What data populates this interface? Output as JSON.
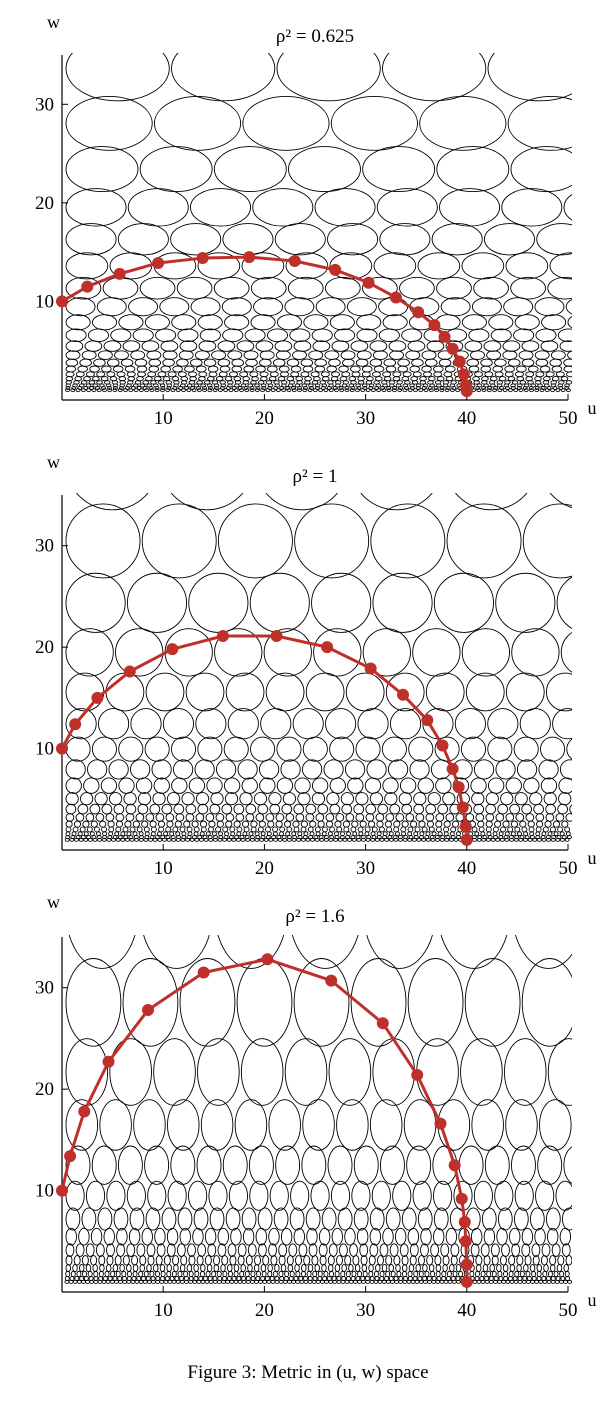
{
  "figure": {
    "caption": "Figure 3: Metric in (u, w) space"
  },
  "chart_data": [
    {
      "type": "scatter",
      "title": "ρ² = 0.625",
      "rho2": 0.625,
      "xlabel": "u",
      "ylabel": "w",
      "xlim": [
        0,
        50
      ],
      "ylim": [
        0,
        35
      ],
      "xticks": [
        10,
        20,
        30,
        40,
        50
      ],
      "yticks": [
        10,
        20,
        30
      ],
      "grid": false,
      "curve_color": "#c0302b",
      "ellipse_color": "#000000",
      "curve": {
        "x": [
          0,
          2.5,
          5.7,
          9.5,
          13.9,
          18.5,
          23.0,
          27.0,
          30.3,
          33.0,
          35.2,
          36.8,
          37.8,
          38.6,
          39.3,
          39.7,
          39.9,
          40.0
        ],
        "y": [
          10,
          11.5,
          12.8,
          13.9,
          14.4,
          14.5,
          14.1,
          13.2,
          11.9,
          10.4,
          8.9,
          7.6,
          6.4,
          5.2,
          3.9,
          2.6,
          1.5,
          0.9
        ]
      },
      "markers": {
        "x": [
          0,
          2.5,
          5.7,
          9.5,
          13.9,
          18.5,
          23.0,
          27.0,
          30.3,
          33.0,
          35.2,
          36.8,
          37.8,
          38.6,
          39.3,
          39.7,
          39.9,
          40.0
        ],
        "y": [
          10,
          11.5,
          12.8,
          13.9,
          14.4,
          14.5,
          14.1,
          13.2,
          11.9,
          10.4,
          8.9,
          7.6,
          6.4,
          5.2,
          3.9,
          2.6,
          1.5,
          0.9
        ]
      }
    },
    {
      "type": "scatter",
      "title": "ρ² = 1",
      "rho2": 1,
      "xlabel": "u",
      "ylabel": "w",
      "xlim": [
        0,
        50
      ],
      "ylim": [
        0,
        35
      ],
      "xticks": [
        10,
        20,
        30,
        40,
        50
      ],
      "yticks": [
        10,
        20,
        30
      ],
      "grid": false,
      "curve_color": "#c0302b",
      "ellipse_color": "#000000",
      "curve": {
        "x": [
          0,
          1.3,
          3.5,
          6.7,
          10.9,
          15.9,
          21.2,
          26.2,
          30.5,
          33.7,
          36.1,
          37.6,
          38.6,
          39.2,
          39.6,
          39.9,
          40.0
        ],
        "y": [
          10,
          12.4,
          15.0,
          17.6,
          19.8,
          21.1,
          21.1,
          20.0,
          17.9,
          15.3,
          12.8,
          10.3,
          8.0,
          6.2,
          4.2,
          2.3,
          1.0
        ]
      },
      "markers": {
        "x": [
          0,
          1.3,
          3.5,
          6.7,
          10.9,
          15.9,
          21.2,
          26.2,
          30.5,
          33.7,
          36.1,
          37.6,
          38.6,
          39.2,
          39.6,
          39.9,
          40.0
        ],
        "y": [
          10,
          12.4,
          15.0,
          17.6,
          19.8,
          21.1,
          21.1,
          20.0,
          17.9,
          15.3,
          12.8,
          10.3,
          8.0,
          6.2,
          4.2,
          2.3,
          1.0
        ]
      }
    },
    {
      "type": "scatter",
      "title": "ρ² = 1.6",
      "rho2": 1.6,
      "xlabel": "u",
      "ylabel": "w",
      "xlim": [
        0,
        50
      ],
      "ylim": [
        0,
        35
      ],
      "xticks": [
        10,
        20,
        30,
        40,
        50
      ],
      "yticks": [
        10,
        20,
        30
      ],
      "grid": false,
      "curve_color": "#c0302b",
      "ellipse_color": "#000000",
      "curve": {
        "x": [
          0,
          0.8,
          2.2,
          4.6,
          8.5,
          14.0,
          20.3,
          26.6,
          31.7,
          35.1,
          37.4,
          38.8,
          39.5,
          39.8,
          39.9,
          40.0,
          40.0
        ],
        "y": [
          10,
          13.4,
          17.8,
          22.7,
          27.8,
          31.5,
          32.8,
          30.7,
          26.5,
          21.4,
          16.6,
          12.5,
          9.2,
          6.9,
          5.0,
          2.7,
          1.0
        ]
      },
      "markers": {
        "x": [
          0,
          0.8,
          2.2,
          4.6,
          8.5,
          14.0,
          20.3,
          26.6,
          31.7,
          35.1,
          37.4,
          38.8,
          39.5,
          39.8,
          39.9,
          40.0,
          40.0
        ],
        "y": [
          10,
          13.4,
          17.8,
          22.7,
          27.8,
          31.5,
          32.8,
          30.7,
          26.5,
          21.4,
          16.6,
          12.5,
          9.2,
          6.9,
          5.0,
          2.7,
          1.0
        ]
      }
    }
  ]
}
